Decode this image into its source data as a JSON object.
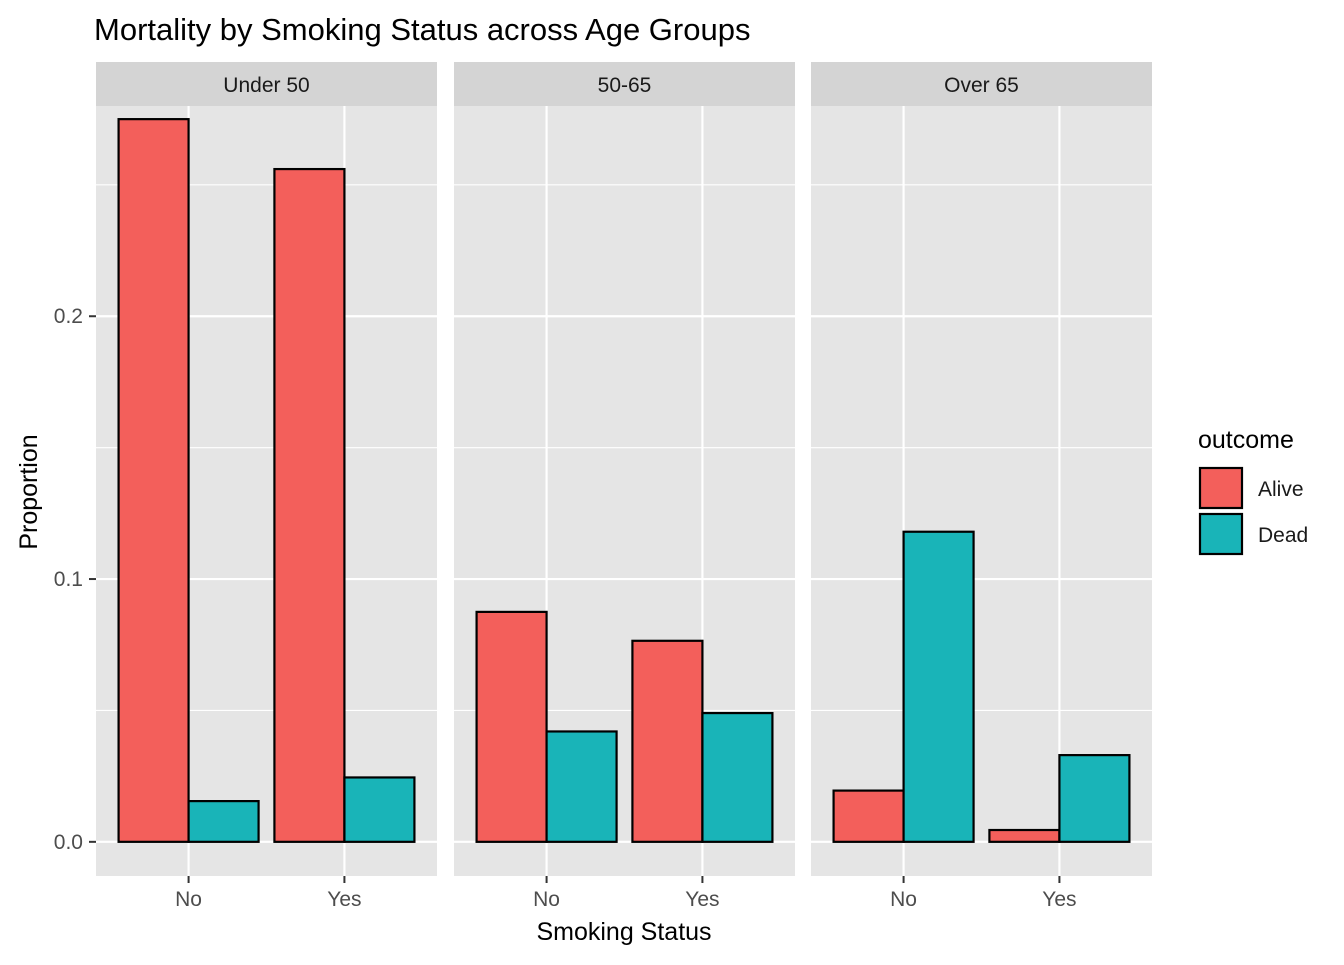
{
  "chart_data": {
    "type": "bar",
    "title": "Mortality by Smoking Status across Age Groups",
    "xlabel": "Smoking Status",
    "ylabel": "Proportion",
    "ylim": [
      -0.013,
      0.28
    ],
    "y_ticks": [
      0.0,
      0.1,
      0.2
    ],
    "y_tick_labels": [
      "0.0",
      "0.1",
      "0.2"
    ],
    "y_minor_ticks": [
      0.05,
      0.15,
      0.25
    ],
    "grid": true,
    "legend_position": "right",
    "legend": {
      "title": "outcome",
      "entries": [
        {
          "label": "Alive",
          "color": "#F35F5B"
        },
        {
          "label": "Dead",
          "color": "#19B4B8"
        }
      ]
    },
    "colors": {
      "panel_background": "#E5E5E5",
      "strip_background": "#D4D4D4",
      "grid": "#FFFFFF",
      "bar_outline": "#000000",
      "axis_text": "#4D4D4D"
    },
    "categories": [
      "No",
      "Yes"
    ],
    "facets": [
      {
        "label": "Under 50",
        "series": [
          {
            "name": "Alive",
            "values": [
              0.275,
              0.256
            ]
          },
          {
            "name": "Dead",
            "values": [
              0.0155,
              0.0245
            ]
          }
        ]
      },
      {
        "label": "50-65",
        "series": [
          {
            "name": "Alive",
            "values": [
              0.0875,
              0.0765
            ]
          },
          {
            "name": "Dead",
            "values": [
              0.042,
              0.049
            ]
          }
        ]
      },
      {
        "label": "Over 65",
        "series": [
          {
            "name": "Alive",
            "values": [
              0.0195,
              0.0045
            ]
          },
          {
            "name": "Dead",
            "values": [
              0.118,
              0.033
            ]
          }
        ]
      }
    ]
  }
}
